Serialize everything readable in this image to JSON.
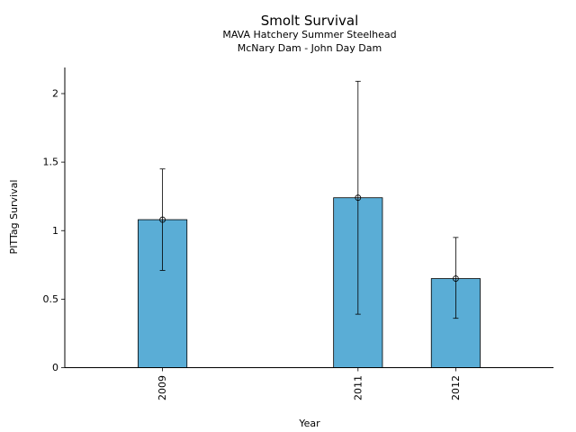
{
  "chart_data": {
    "type": "bar",
    "title": "Smolt Survival",
    "subtitle_lines": [
      "MAVA Hatchery Summer Steelhead",
      "McNary Dam - John Day Dam"
    ],
    "xlabel": "Year",
    "ylabel": "PITTag Survival",
    "x_domain": [
      2008,
      2013
    ],
    "ylim": [
      0,
      2.2
    ],
    "yticks": [
      0,
      0.5,
      1,
      1.5,
      2
    ],
    "ytick_labels": [
      "0",
      "0.5",
      "1",
      "1.5",
      "2"
    ],
    "categories": [
      "2009",
      "2011",
      "2012"
    ],
    "x": [
      2009,
      2011,
      2012
    ],
    "values": [
      1.08,
      1.24,
      0.65
    ],
    "error_low": [
      0.71,
      0.39,
      0.36
    ],
    "error_high": [
      1.45,
      2.09,
      0.95
    ],
    "bar_width_years": 0.5,
    "bar_color": "#5aadd6",
    "edge_color": "#000000",
    "grid": false
  }
}
